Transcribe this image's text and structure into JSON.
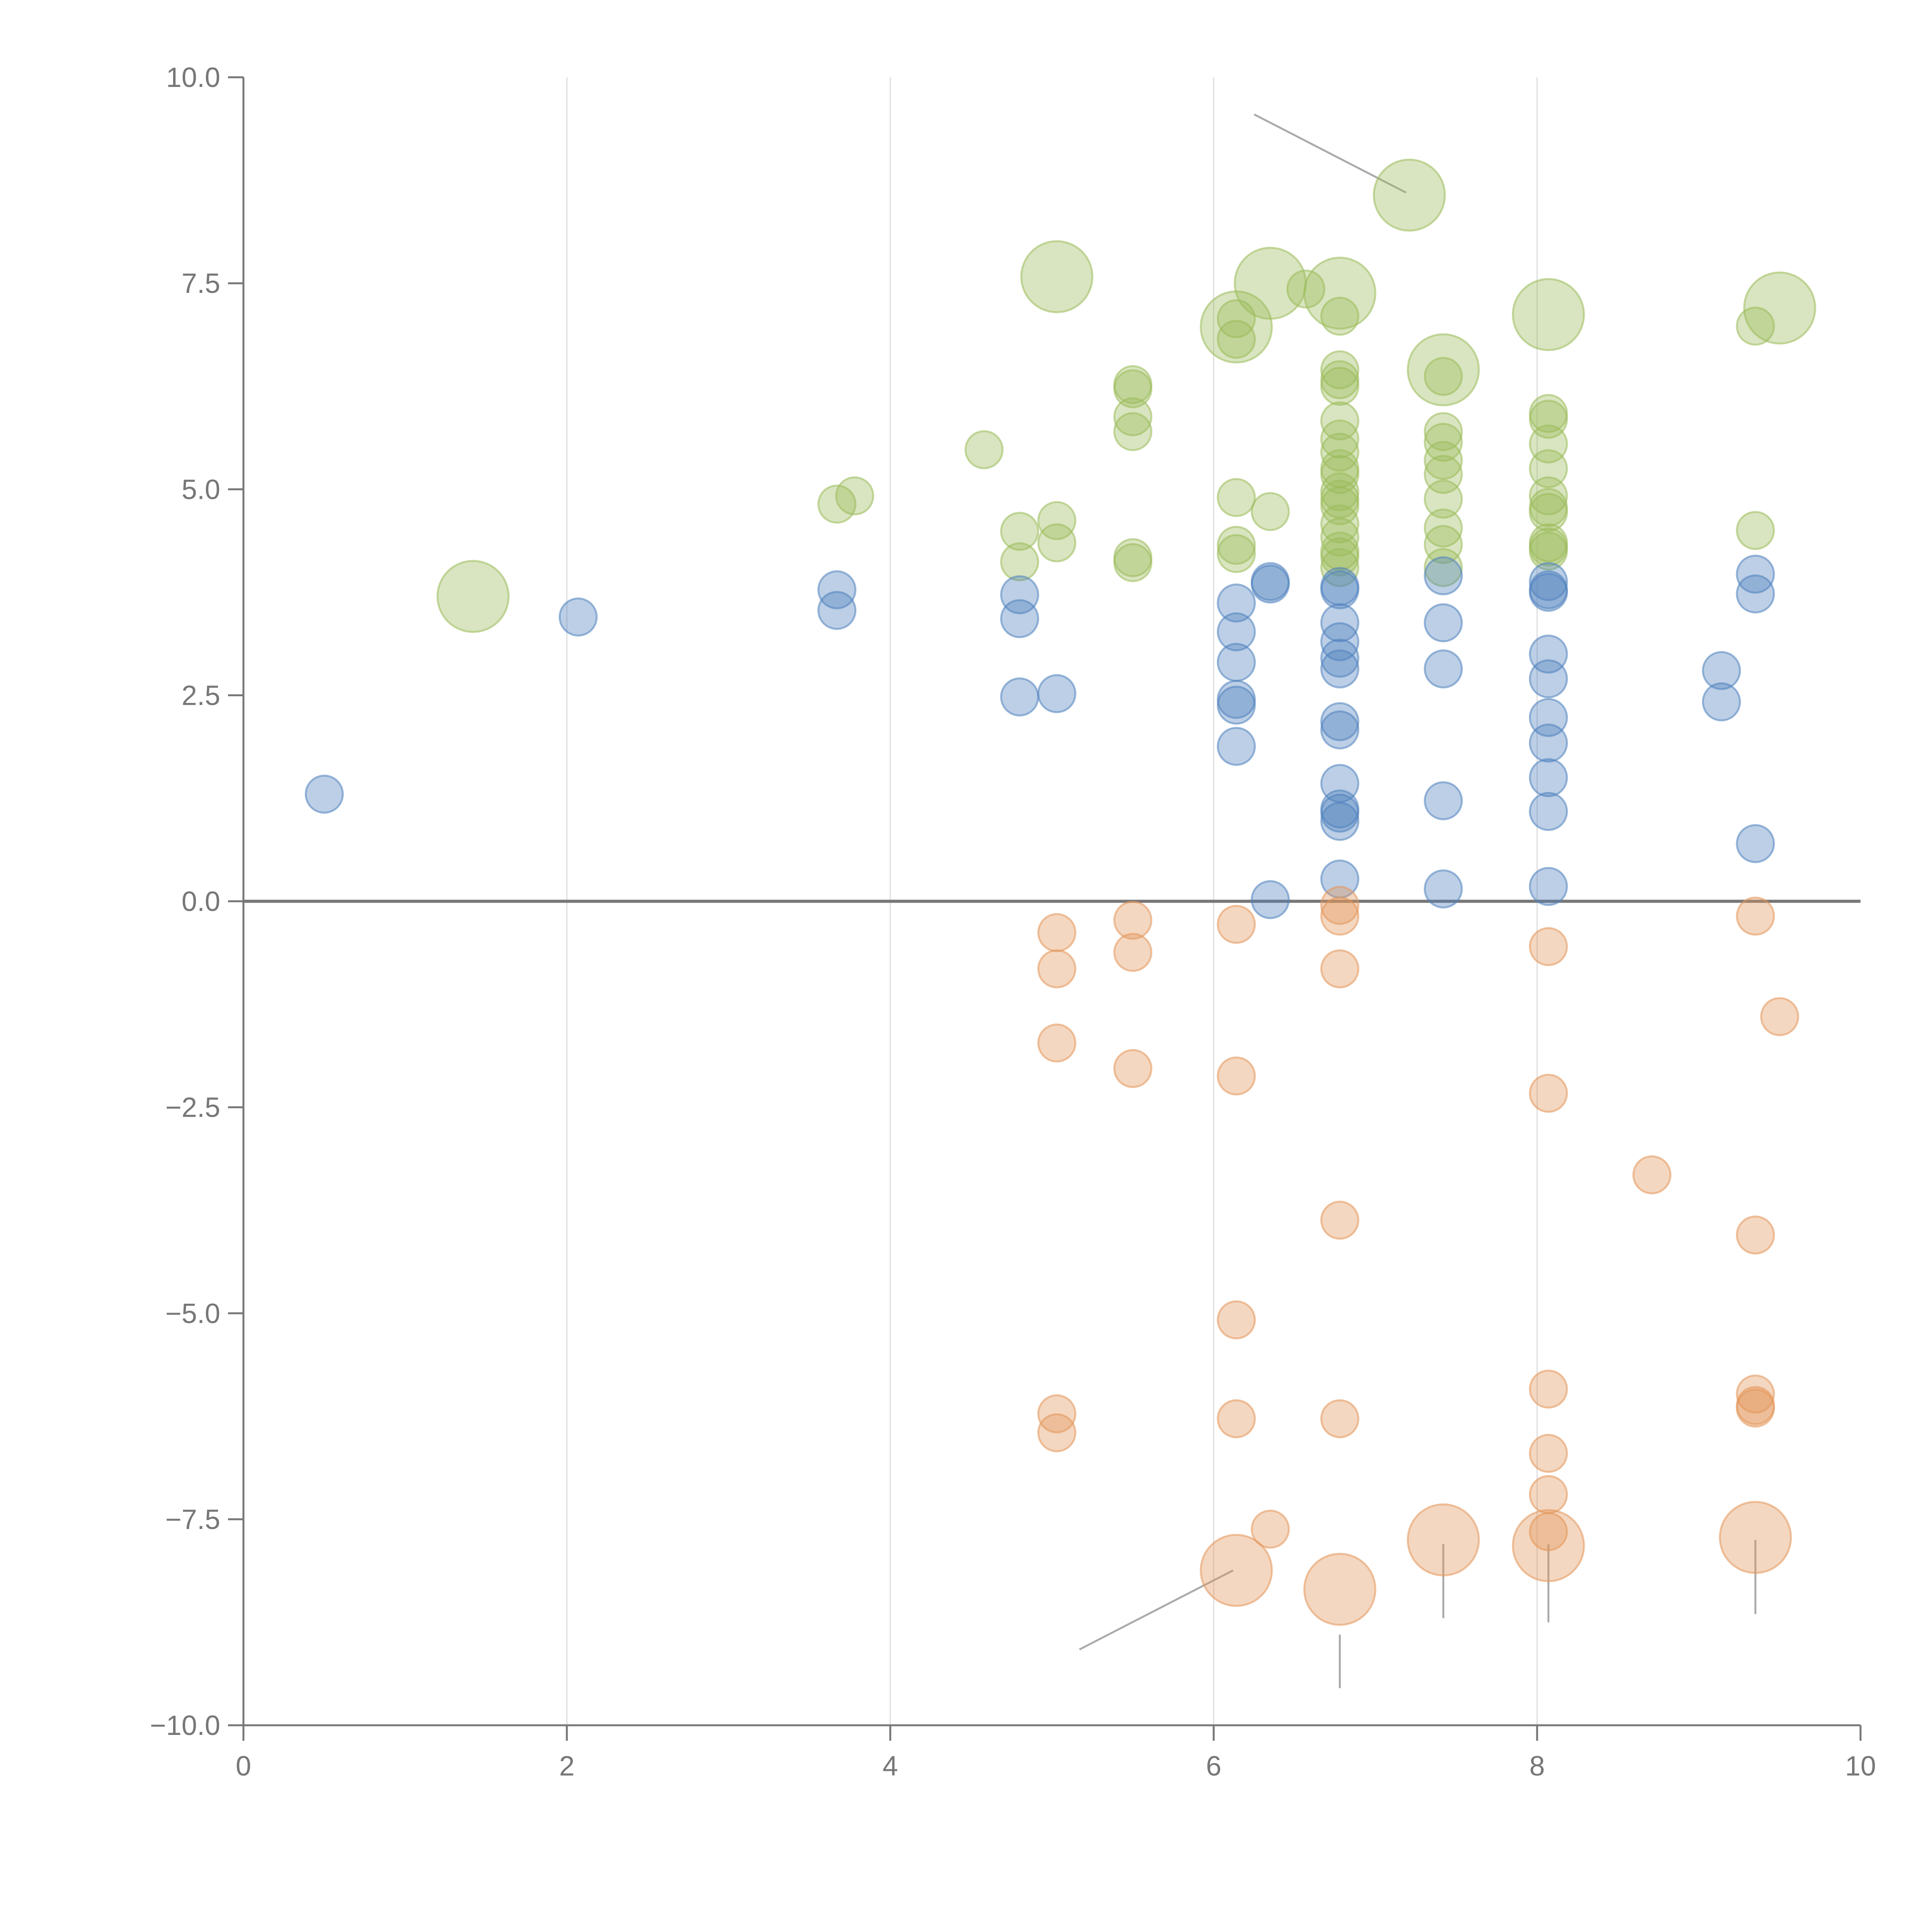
{
  "chart_data": {
    "type": "scatter",
    "title": "",
    "xlabel": "",
    "ylabel": "",
    "xlim": [
      0,
      10
    ],
    "ylim": [
      -10,
      10
    ],
    "grid": {
      "vertical": true,
      "horizontal": false
    },
    "zero_line": true,
    "x_ticks": [
      0,
      2,
      4,
      6,
      8,
      10
    ],
    "y_ticks": [
      10,
      7.5,
      5,
      2.5,
      0,
      -2.5,
      -5,
      -7.5,
      -10
    ],
    "x_tick_labels": [
      "0",
      "2",
      "4",
      "6",
      "8",
      "10"
    ],
    "y_tick_labels": [
      "10.0",
      "7.5",
      "5.0",
      "2.5",
      "0.0",
      "−2.5",
      "−5.0",
      "−7.5",
      "−10.0"
    ],
    "series": [
      {
        "name": "green",
        "color": "#9bbb59",
        "small_points": [
          [
            3.67,
            4.82
          ],
          [
            3.78,
            4.92
          ],
          [
            4.58,
            5.48
          ],
          [
            4.8,
            4.49
          ],
          [
            4.8,
            4.12
          ],
          [
            5.03,
            4.62
          ],
          [
            5.03,
            4.35
          ],
          [
            5.5,
            6.27
          ],
          [
            5.5,
            6.22
          ],
          [
            5.5,
            5.88
          ],
          [
            5.5,
            5.7
          ],
          [
            5.5,
            4.17
          ],
          [
            5.5,
            4.11
          ],
          [
            6.14,
            4.9
          ],
          [
            6.14,
            4.32
          ],
          [
            6.14,
            4.22
          ],
          [
            6.14,
            6.82
          ],
          [
            6.14,
            7.07
          ],
          [
            6.35,
            4.73
          ],
          [
            6.57,
            7.43
          ],
          [
            6.78,
            7.1
          ],
          [
            6.78,
            6.45
          ],
          [
            6.78,
            6.33
          ],
          [
            6.78,
            6.25
          ],
          [
            6.78,
            5.83
          ],
          [
            6.78,
            5.61
          ],
          [
            6.78,
            5.45
          ],
          [
            6.78,
            5.25
          ],
          [
            6.78,
            5.18
          ],
          [
            6.78,
            4.97
          ],
          [
            6.78,
            4.88
          ],
          [
            6.78,
            4.8
          ],
          [
            6.78,
            4.58
          ],
          [
            6.78,
            4.42
          ],
          [
            6.78,
            4.25
          ],
          [
            6.78,
            4.18
          ],
          [
            6.78,
            4.05
          ],
          [
            7.42,
            6.37
          ],
          [
            7.42,
            5.7
          ],
          [
            7.42,
            5.57
          ],
          [
            7.42,
            5.35
          ],
          [
            7.42,
            5.18
          ],
          [
            7.42,
            4.88
          ],
          [
            7.42,
            4.53
          ],
          [
            7.42,
            4.33
          ],
          [
            7.42,
            4.05
          ],
          [
            8.07,
            5.92
          ],
          [
            8.07,
            5.85
          ],
          [
            8.07,
            5.55
          ],
          [
            8.07,
            5.25
          ],
          [
            8.07,
            4.92
          ],
          [
            8.07,
            4.78
          ],
          [
            8.07,
            4.72
          ],
          [
            8.07,
            4.35
          ],
          [
            8.07,
            4.3
          ],
          [
            8.07,
            4.25
          ],
          [
            9.35,
            6.98
          ],
          [
            9.35,
            4.5
          ]
        ],
        "big_points": [
          [
            1.42,
            3.7
          ],
          [
            5.03,
            7.58
          ],
          [
            6.14,
            6.97
          ],
          [
            6.35,
            7.5
          ],
          [
            6.78,
            7.38
          ],
          [
            7.21,
            8.57
          ],
          [
            7.42,
            6.45
          ],
          [
            8.07,
            7.12
          ],
          [
            9.5,
            7.2
          ]
        ]
      },
      {
        "name": "blue",
        "color": "#4f81bd",
        "small_points": [
          [
            0.5,
            1.3
          ],
          [
            2.07,
            3.45
          ],
          [
            3.67,
            3.78
          ],
          [
            3.67,
            3.53
          ],
          [
            4.8,
            3.72
          ],
          [
            4.8,
            3.43
          ],
          [
            4.8,
            2.48
          ],
          [
            5.03,
            2.52
          ],
          [
            6.14,
            3.62
          ],
          [
            6.14,
            3.27
          ],
          [
            6.14,
            2.9
          ],
          [
            6.14,
            2.45
          ],
          [
            6.14,
            2.38
          ],
          [
            6.14,
            1.88
          ],
          [
            6.35,
            3.88
          ],
          [
            6.35,
            3.85
          ],
          [
            6.35,
            0.02
          ],
          [
            6.78,
            3.82
          ],
          [
            6.78,
            3.78
          ],
          [
            6.78,
            3.38
          ],
          [
            6.78,
            3.15
          ],
          [
            6.78,
            2.95
          ],
          [
            6.78,
            2.82
          ],
          [
            6.78,
            2.18
          ],
          [
            6.78,
            2.08
          ],
          [
            6.78,
            1.43
          ],
          [
            6.78,
            1.12
          ],
          [
            6.78,
            1.07
          ],
          [
            6.78,
            0.97
          ],
          [
            6.78,
            0.27
          ],
          [
            7.42,
            3.95
          ],
          [
            7.42,
            3.38
          ],
          [
            7.42,
            2.82
          ],
          [
            7.42,
            1.22
          ],
          [
            7.42,
            0.15
          ],
          [
            8.07,
            3.88
          ],
          [
            8.07,
            3.78
          ],
          [
            8.07,
            3.75
          ],
          [
            8.07,
            3.0
          ],
          [
            8.07,
            2.7
          ],
          [
            8.07,
            2.23
          ],
          [
            8.07,
            1.92
          ],
          [
            8.07,
            1.5
          ],
          [
            8.07,
            1.09
          ],
          [
            8.07,
            0.18
          ],
          [
            9.14,
            2.8
          ],
          [
            9.14,
            2.42
          ],
          [
            9.35,
            3.97
          ],
          [
            9.35,
            3.73
          ],
          [
            9.35,
            0.7
          ]
        ],
        "big_points": []
      },
      {
        "name": "orange",
        "color": "#e3955a",
        "small_points": [
          [
            5.03,
            -0.38
          ],
          [
            5.03,
            -0.82
          ],
          [
            5.03,
            -1.72
          ],
          [
            5.03,
            -6.22
          ],
          [
            5.03,
            -6.45
          ],
          [
            5.5,
            -0.23
          ],
          [
            5.5,
            -0.62
          ],
          [
            5.5,
            -2.03
          ],
          [
            6.14,
            -0.28
          ],
          [
            6.14,
            -2.12
          ],
          [
            6.14,
            -5.08
          ],
          [
            6.14,
            -6.28
          ],
          [
            6.35,
            -7.62
          ],
          [
            6.78,
            -0.05
          ],
          [
            6.78,
            -0.18
          ],
          [
            6.78,
            -0.82
          ],
          [
            6.78,
            -3.87
          ],
          [
            6.78,
            -6.28
          ],
          [
            8.07,
            -0.55
          ],
          [
            8.07,
            -2.33
          ],
          [
            8.07,
            -5.92
          ],
          [
            8.07,
            -6.7
          ],
          [
            8.07,
            -7.2
          ],
          [
            8.07,
            -7.65
          ],
          [
            8.71,
            -3.32
          ],
          [
            9.35,
            -0.18
          ],
          [
            9.35,
            -4.05
          ],
          [
            9.35,
            -5.98
          ],
          [
            9.35,
            -6.12
          ],
          [
            9.35,
            -6.15
          ],
          [
            9.5,
            -1.4
          ]
        ],
        "big_points": [
          [
            6.14,
            -8.12
          ],
          [
            6.78,
            -8.35
          ],
          [
            7.42,
            -7.75
          ],
          [
            8.07,
            -7.82
          ],
          [
            9.35,
            -7.72
          ]
        ]
      }
    ],
    "leader_lines": [
      {
        "from": [
          6.25,
          9.55
        ],
        "to": [
          7.19,
          8.6
        ]
      },
      {
        "from": [
          6.12,
          -8.12
        ],
        "to": [
          5.17,
          -9.08
        ]
      },
      {
        "from": [
          6.78,
          -8.9
        ],
        "to": [
          6.78,
          -9.55
        ]
      },
      {
        "from": [
          7.42,
          -7.8
        ],
        "to": [
          7.42,
          -8.7
        ]
      },
      {
        "from": [
          8.07,
          -7.8
        ],
        "to": [
          8.07,
          -8.75
        ]
      },
      {
        "from": [
          9.35,
          -7.75
        ],
        "to": [
          9.35,
          -8.65
        ]
      }
    ]
  }
}
